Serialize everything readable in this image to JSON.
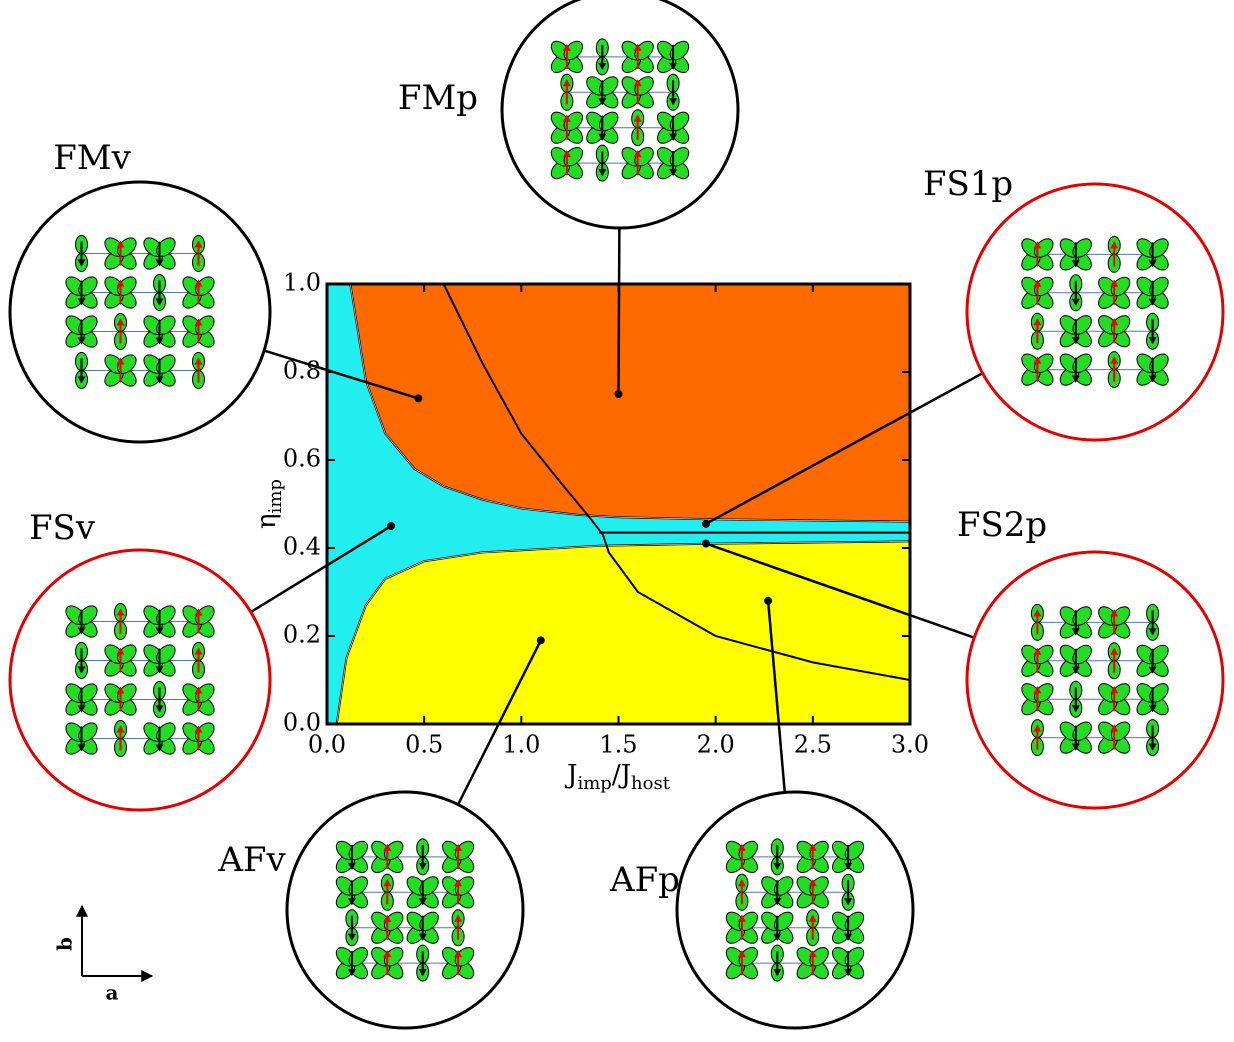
{
  "chart_data": {
    "type": "phase",
    "x_label": [
      "J",
      "imp",
      "/J",
      "host"
    ],
    "y_label": [
      "η",
      "imp"
    ],
    "xlim": [
      0,
      3
    ],
    "ylim": [
      0,
      1
    ],
    "xticks": [
      {
        "value": 0,
        "label": "0.0"
      },
      {
        "value": 0.5,
        "label": "0.5"
      },
      {
        "value": 1,
        "label": "1.0"
      },
      {
        "value": 1.5,
        "label": "1.5"
      },
      {
        "value": 2,
        "label": "2.0"
      },
      {
        "value": 2.5,
        "label": "2.5"
      },
      {
        "value": 3,
        "label": "3.0"
      }
    ],
    "yticks": [
      {
        "value": 0,
        "label": "0.0"
      },
      {
        "value": 0.2,
        "label": "0.2"
      },
      {
        "value": 0.4,
        "label": "0.4"
      },
      {
        "value": 0.6,
        "label": "0.6"
      },
      {
        "value": 0.8,
        "label": "0.8"
      },
      {
        "value": 1,
        "label": "1.0"
      }
    ],
    "background": "#22eef0",
    "regions": [
      {
        "color": "#ff6a00",
        "x": [
          0.12,
          0.2,
          0.3,
          0.45,
          0.6,
          0.8,
          1.0,
          1.3,
          1.5,
          2,
          3,
          3
        ],
        "y": [
          1,
          0.78,
          0.66,
          0.58,
          0.54,
          0.51,
          0.49,
          0.475,
          0.47,
          0.465,
          0.46,
          1
        ]
      },
      {
        "color": "#ffff00",
        "x": [
          0.05,
          0.1,
          0.2,
          0.3,
          0.5,
          0.8,
          1.0,
          1.4,
          2,
          3,
          3
        ],
        "y": [
          0,
          0.15,
          0.27,
          0.33,
          0.37,
          0.39,
          0.395,
          0.405,
          0.41,
          0.415,
          0
        ]
      }
    ],
    "boundaries": [
      {
        "x": [
          0.6,
          0.8,
          1.0,
          1.2,
          1.35,
          1.42,
          1.45,
          1.6,
          2.0,
          2.5,
          3
        ],
        "y": [
          1,
          0.82,
          0.66,
          0.55,
          0.47,
          0.43,
          0.39,
          0.3,
          0.2,
          0.14,
          0.1
        ]
      },
      {
        "x": [
          1.4,
          3
        ],
        "y": [
          0.435,
          0.435
        ]
      }
    ],
    "phases": [
      {
        "name": "FMp",
        "x": 1.5,
        "y": 0.75,
        "border": "#000000"
      },
      {
        "name": "FMv",
        "x": 0.47,
        "y": 0.74,
        "border": "#000000"
      },
      {
        "name": "FS1p",
        "x": 1.95,
        "y": 0.455,
        "border": "#e00000"
      },
      {
        "name": "FSv",
        "x": 0.33,
        "y": 0.45,
        "border": "#e00000"
      },
      {
        "name": "FS2p",
        "x": 1.95,
        "y": 0.41,
        "border": "#e00000"
      },
      {
        "name": "AFv",
        "x": 1.1,
        "y": 0.19,
        "border": "#000000"
      },
      {
        "name": "AFp",
        "x": 2.27,
        "y": 0.28,
        "border": "#000000"
      }
    ],
    "lattice_axes": [
      "b",
      "a"
    ]
  }
}
